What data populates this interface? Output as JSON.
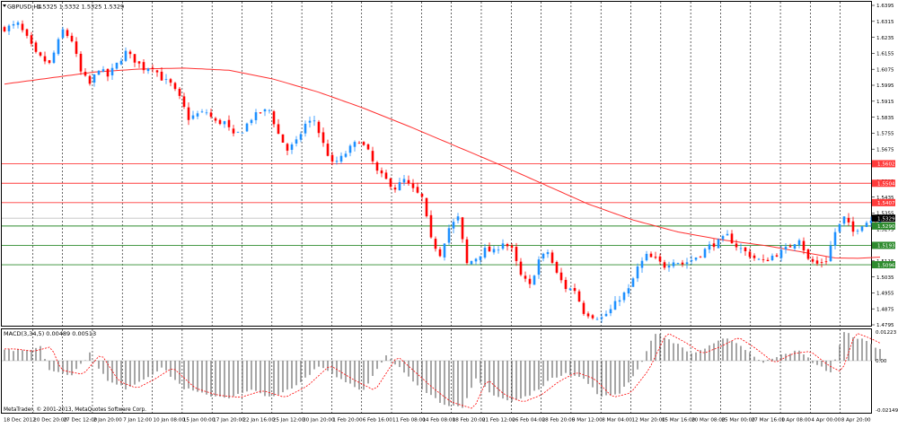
{
  "window": {
    "symbol_header": "GBPUSD,H4",
    "ohlc_header": "1.5325 1.5332 1.5325 1.5329",
    "copyright": "MetaTrader, © 2001-2013, MetaQuotes Software Corp."
  },
  "chart_data": [
    {
      "type": "candlestick",
      "title": "GBPUSD,H4",
      "ylim": [
        1.4795,
        1.6395
      ],
      "price_ticks": [
        "1.6395",
        "1.6315",
        "1.6235",
        "1.6155",
        "1.6075",
        "1.5995",
        "1.5915",
        "1.5835",
        "1.5755",
        "1.5675",
        "1.5595",
        "1.5515",
        "1.5435",
        "1.5355",
        "1.5275",
        "1.5195",
        "1.5115",
        "1.5035",
        "1.4955",
        "1.4875",
        "1.4795"
      ],
      "time_labels": [
        "18 Dec 2012",
        "20 Dec 20:00",
        "27 Dec 12:00",
        "2 Jan 20:00",
        "7 Jan 12:00",
        "10 Jan 08:00",
        "15 Jan 00:00",
        "17 Jan 20:00",
        "22 Jan 16:00",
        "25 Jan 12:00",
        "30 Jan 20:00",
        "1 Feb 20:00",
        "6 Feb 16:00",
        "11 Feb 08:00",
        "14 Feb 08:00",
        "18 Feb 20:00",
        "21 Feb 12:00",
        "26 Feb 04:00",
        "28 Feb 20:00",
        "5 Mar 12:00",
        "8 Mar 04:00",
        "12 Mar 20:00",
        "15 Mar 16:00",
        "20 Mar 08:00",
        "25 Mar 00:00",
        "27 Mar 16:00",
        "1 Apr 08:00",
        "4 Apr 00:00",
        "8 Apr 20:00"
      ],
      "current_price": "1.5329",
      "up_color": "#1e90ff",
      "down_color": "#ff0000",
      "moving_average_color": "#ff3030",
      "horizontal_levels": [
        {
          "value": "1.5602",
          "color": "#ff3b3b"
        },
        {
          "value": "1.5504",
          "color": "#ff3b3b"
        },
        {
          "value": "1.5407",
          "color": "#ff3b3b"
        },
        {
          "value": "1.5290",
          "color": "#2e8b2e"
        },
        {
          "value": "1.5193",
          "color": "#2e8b2e"
        },
        {
          "value": "1.5096",
          "color": "#2e8b2e"
        }
      ],
      "close_path": [
        [
          0,
          1.628
        ],
        [
          3,
          1.63
        ],
        [
          5,
          1.623
        ],
        [
          7,
          1.615
        ],
        [
          10,
          1.61
        ],
        [
          13,
          1.627
        ],
        [
          15,
          1.622
        ],
        [
          17,
          1.606
        ],
        [
          19,
          1.6
        ],
        [
          21,
          1.608
        ],
        [
          23,
          1.604
        ],
        [
          25,
          1.61
        ],
        [
          27,
          1.616
        ],
        [
          29,
          1.612
        ],
        [
          31,
          1.608
        ],
        [
          33,
          1.609
        ],
        [
          35,
          1.603
        ],
        [
          37,
          1.6
        ],
        [
          39,
          1.593
        ],
        [
          41,
          1.583
        ],
        [
          43,
          1.585
        ],
        [
          45,
          1.586
        ],
        [
          47,
          1.581
        ],
        [
          49,
          1.581
        ],
        [
          51,
          1.574
        ],
        [
          53,
          1.577
        ],
        [
          55,
          1.583
        ],
        [
          57,
          1.586
        ],
        [
          59,
          1.587
        ],
        [
          61,
          1.575
        ],
        [
          63,
          1.567
        ],
        [
          65,
          1.571
        ],
        [
          67,
          1.58
        ],
        [
          69,
          1.582
        ],
        [
          71,
          1.57
        ],
        [
          73,
          1.56
        ],
        [
          75,
          1.563
        ],
        [
          77,
          1.568
        ],
        [
          79,
          1.572
        ],
        [
          81,
          1.566
        ],
        [
          83,
          1.556
        ],
        [
          85,
          1.552
        ],
        [
          87,
          1.548
        ],
        [
          89,
          1.552
        ],
        [
          91,
          1.547
        ],
        [
          93,
          1.543
        ],
        [
          95,
          1.522
        ],
        [
          97,
          1.515
        ],
        [
          99,
          1.528
        ],
        [
          101,
          1.533
        ],
        [
          103,
          1.51
        ],
        [
          105,
          1.513
        ],
        [
          107,
          1.517
        ],
        [
          109,
          1.516
        ],
        [
          111,
          1.521
        ],
        [
          113,
          1.517
        ],
        [
          115,
          1.504
        ],
        [
          117,
          1.499
        ],
        [
          119,
          1.512
        ],
        [
          121,
          1.516
        ],
        [
          123,
          1.505
        ],
        [
          125,
          1.498
        ],
        [
          127,
          1.497
        ],
        [
          129,
          1.486
        ],
        [
          131,
          1.484
        ],
        [
          133,
          1.483
        ],
        [
          135,
          1.487
        ],
        [
          137,
          1.493
        ],
        [
          139,
          1.497
        ],
        [
          141,
          1.508
        ],
        [
          143,
          1.514
        ],
        [
          145,
          1.512
        ],
        [
          147,
          1.509
        ],
        [
          149,
          1.512
        ],
        [
          151,
          1.51
        ],
        [
          153,
          1.512
        ],
        [
          155,
          1.515
        ],
        [
          157,
          1.519
        ],
        [
          159,
          1.521
        ],
        [
          161,
          1.524
        ],
        [
          163,
          1.519
        ],
        [
          165,
          1.516
        ],
        [
          167,
          1.513
        ],
        [
          169,
          1.511
        ],
        [
          171,
          1.514
        ],
        [
          173,
          1.516
        ],
        [
          175,
          1.519
        ],
        [
          177,
          1.523
        ],
        [
          179,
          1.512
        ],
        [
          181,
          1.51
        ],
        [
          183,
          1.512
        ],
        [
          185,
          1.526
        ],
        [
          187,
          1.533
        ],
        [
          189,
          1.526
        ],
        [
          191,
          1.53
        ],
        [
          193,
          1.532
        ],
        [
          195,
          1.533
        ]
      ],
      "moving_average_path": [
        [
          0,
          1.6001
        ],
        [
          10,
          1.6031
        ],
        [
          20,
          1.6061
        ],
        [
          30,
          1.6076
        ],
        [
          40,
          1.6081
        ],
        [
          50,
          1.607
        ],
        [
          60,
          1.6025
        ],
        [
          70,
          1.596
        ],
        [
          80,
          1.588
        ],
        [
          90,
          1.579
        ],
        [
          100,
          1.5695
        ],
        [
          110,
          1.56
        ],
        [
          120,
          1.55
        ],
        [
          130,
          1.54
        ],
        [
          140,
          1.532
        ],
        [
          150,
          1.526
        ],
        [
          160,
          1.522
        ],
        [
          170,
          1.519
        ],
        [
          180,
          1.515
        ],
        [
          185,
          1.513
        ],
        [
          190,
          1.5128
        ],
        [
          195,
          1.5134
        ]
      ]
    },
    {
      "type": "histogram",
      "title": "MACD(3,34,5) 0.00489 0.00513",
      "ylim": [
        -0.02149,
        0.01223
      ],
      "tick_labels": [
        "0.01223",
        "0.00",
        "-0.02149"
      ],
      "bar_color": "#808080",
      "signal_color": "#ff0000",
      "anchors": [
        [
          0,
          0.005
        ],
        [
          4,
          0.004
        ],
        [
          8,
          0.006
        ],
        [
          10,
          -0.004
        ],
        [
          15,
          -0.006
        ],
        [
          19,
          0.003
        ],
        [
          23,
          -0.009
        ],
        [
          27,
          -0.012
        ],
        [
          31,
          -0.008
        ],
        [
          35,
          -0.003
        ],
        [
          40,
          -0.012
        ],
        [
          45,
          -0.015
        ],
        [
          50,
          -0.016
        ],
        [
          55,
          -0.013
        ],
        [
          60,
          -0.016
        ],
        [
          65,
          -0.011
        ],
        [
          70,
          -0.002
        ],
        [
          75,
          -0.008
        ],
        [
          80,
          -0.013
        ],
        [
          85,
          0.002
        ],
        [
          89,
          -0.005
        ],
        [
          93,
          -0.012
        ],
        [
          97,
          -0.018
        ],
        [
          102,
          -0.021
        ],
        [
          105,
          -0.008
        ],
        [
          109,
          -0.015
        ],
        [
          113,
          -0.018
        ],
        [
          117,
          -0.015
        ],
        [
          121,
          -0.009
        ],
        [
          125,
          -0.005
        ],
        [
          129,
          -0.008
        ],
        [
          133,
          -0.016
        ],
        [
          137,
          -0.014
        ],
        [
          141,
          -0.004
        ],
        [
          145,
          0.012
        ],
        [
          149,
          0.008
        ],
        [
          153,
          0.003
        ],
        [
          157,
          0.006
        ],
        [
          161,
          0.01
        ],
        [
          165,
          0.005
        ],
        [
          169,
          -0.001
        ],
        [
          173,
          0.003
        ],
        [
          177,
          0.004
        ],
        [
          181,
          -0.002
        ],
        [
          184,
          -0.005
        ],
        [
          187,
          0.012
        ],
        [
          191,
          0.009
        ],
        [
          195,
          0.005
        ]
      ]
    }
  ]
}
